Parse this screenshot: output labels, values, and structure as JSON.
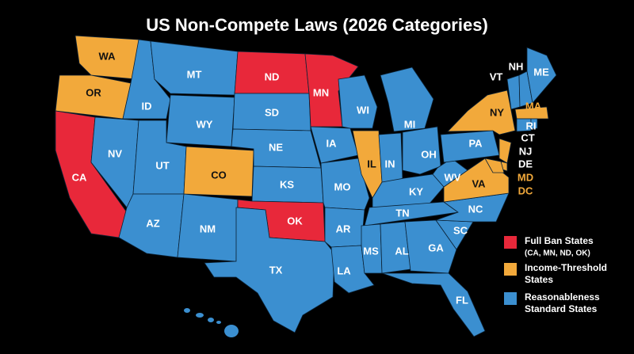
{
  "title": "US Non-Compete Laws (2026 Categories)",
  "legend": [
    {
      "color": "#e8283a",
      "lines": [
        "Full Ban States",
        "(CA, MN, ND, OK)"
      ]
    },
    {
      "color": "#f2a93b",
      "lines": [
        "Income-Threshold",
        "States"
      ]
    },
    {
      "color": "#3b8fd0",
      "lines": [
        "Reasonableness",
        "Standard States"
      ]
    }
  ],
  "states": [
    {
      "label": "WA",
      "legend": 1
    },
    {
      "label": "OR",
      "legend": 1
    },
    {
      "label": "CA",
      "legend": 0
    },
    {
      "label": "ID",
      "legend": 2
    },
    {
      "label": "NV",
      "legend": 2
    },
    {
      "label": "MT",
      "legend": 2
    },
    {
      "label": "WY",
      "legend": 2
    },
    {
      "label": "UT",
      "legend": 2
    },
    {
      "label": "CO",
      "legend": 1
    },
    {
      "label": "AZ",
      "legend": 2
    },
    {
      "label": "NM",
      "legend": 2
    },
    {
      "label": "ND",
      "legend": 0
    },
    {
      "label": "SD",
      "legend": 2
    },
    {
      "label": "NE",
      "legend": 2
    },
    {
      "label": "KS",
      "legend": 2
    },
    {
      "label": "OK",
      "legend": 0
    },
    {
      "label": "TX",
      "legend": 2
    },
    {
      "label": "MN",
      "legend": 0
    },
    {
      "label": "IA",
      "legend": 2
    },
    {
      "label": "MO",
      "legend": 2
    },
    {
      "label": "AR",
      "legend": 2
    },
    {
      "label": "LA",
      "legend": 2
    },
    {
      "label": "WI",
      "legend": 2
    },
    {
      "label": "IL",
      "legend": 1
    },
    {
      "label": "MI",
      "legend": 2
    },
    {
      "label": "IN",
      "legend": 2
    },
    {
      "label": "OH",
      "legend": 2
    },
    {
      "label": "KY",
      "legend": 2
    },
    {
      "label": "TN",
      "legend": 2
    },
    {
      "label": "MS",
      "legend": 2
    },
    {
      "label": "AL",
      "legend": 2
    },
    {
      "label": "GA",
      "legend": 2
    },
    {
      "label": "FL",
      "legend": 2
    },
    {
      "label": "SC",
      "legend": 2
    },
    {
      "label": "NC",
      "legend": 2
    },
    {
      "label": "VA",
      "legend": 1
    },
    {
      "label": "WV",
      "legend": 2
    },
    {
      "label": "PA",
      "legend": 2
    },
    {
      "label": "NY",
      "legend": 1
    },
    {
      "label": "NJ",
      "legend": 1
    },
    {
      "label": "DE",
      "legend": 1
    },
    {
      "label": "MD",
      "legend": 1,
      "label_color": "#f2a93b"
    },
    {
      "label": "DC",
      "legend": 1,
      "label_color": "#f2a93b"
    },
    {
      "label": "VT",
      "legend": 2
    },
    {
      "label": "NH",
      "legend": 2
    },
    {
      "label": "ME",
      "legend": 2
    },
    {
      "label": "MA",
      "legend": 1,
      "label_color": "#f2a93b"
    },
    {
      "label": "CT",
      "legend": 2
    },
    {
      "label": "RI",
      "legend": 2
    }
  ]
}
